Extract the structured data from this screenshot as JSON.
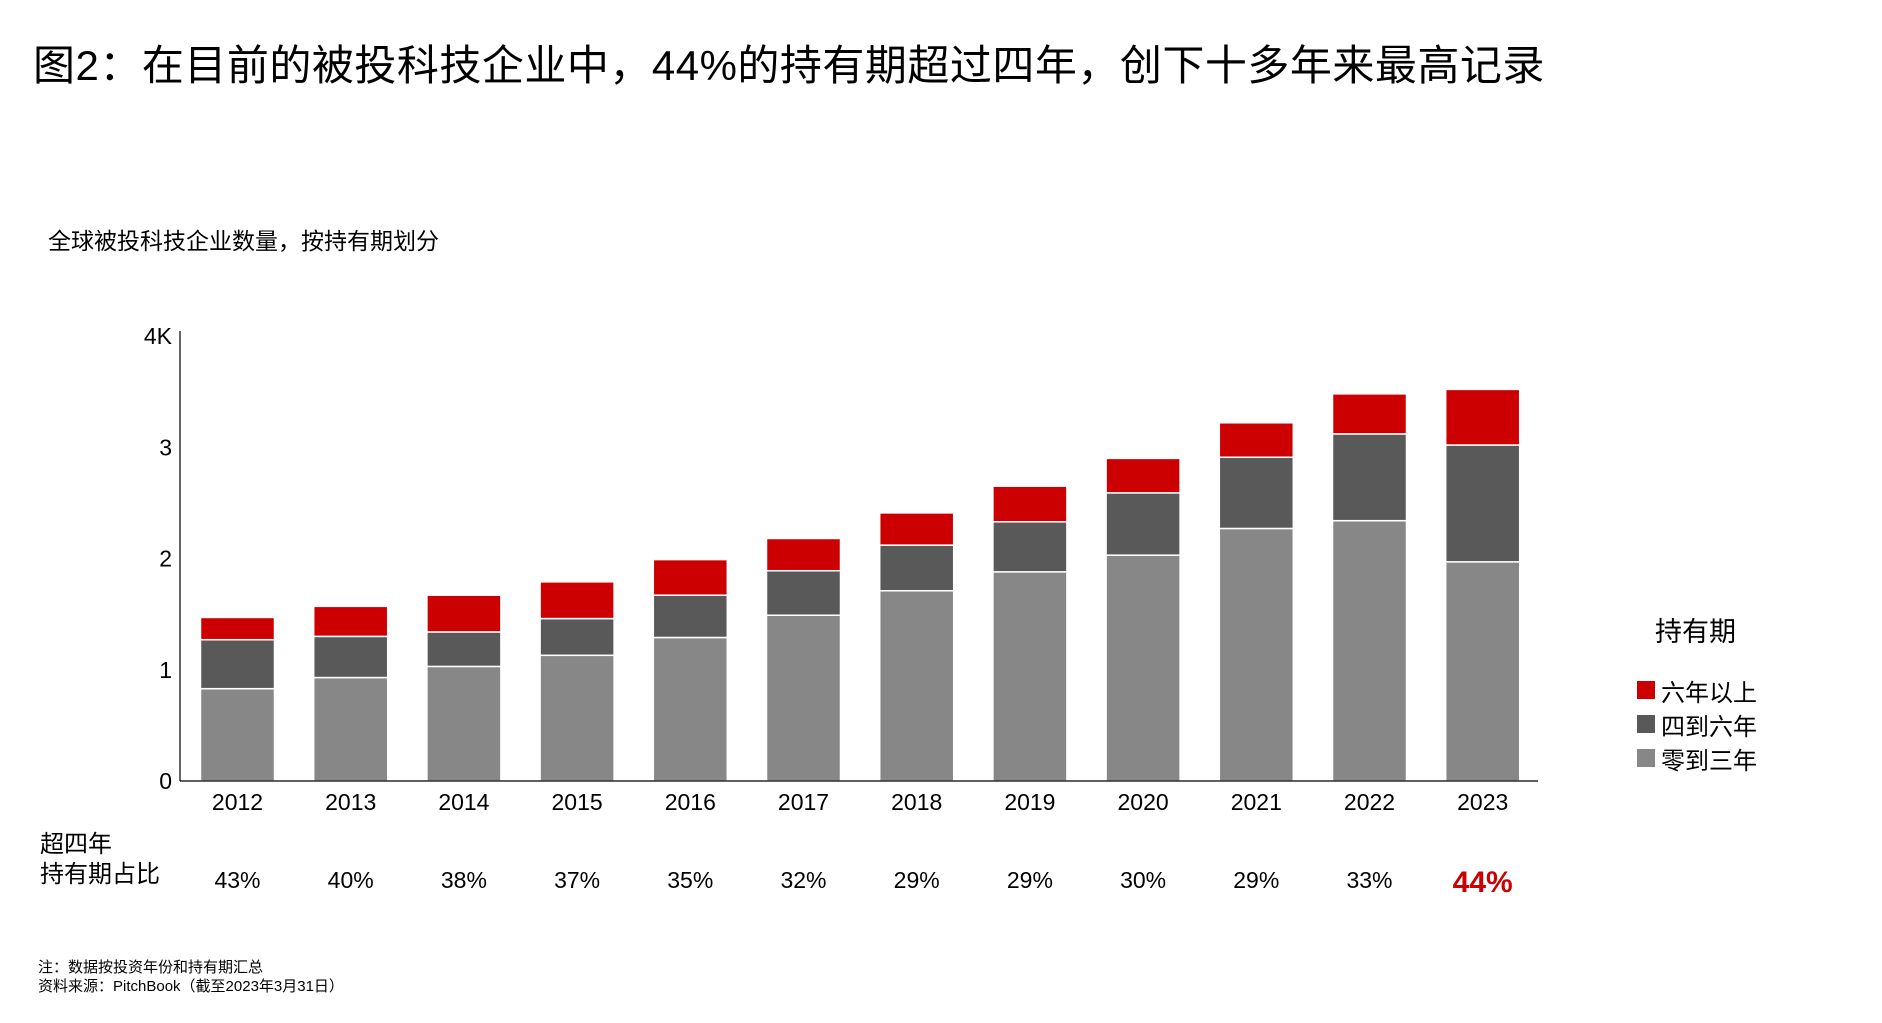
{
  "title": "图2：在目前的被投科技企业中，44%的持有期超过四年，创下十多年来最高记录",
  "subtitle": "全球被投科技企业数量，按持有期划分",
  "chart_data": {
    "type": "bar",
    "stacked": true,
    "categories": [
      "2012",
      "2013",
      "2014",
      "2015",
      "2016",
      "2017",
      "2018",
      "2019",
      "2020",
      "2021",
      "2022",
      "2023"
    ],
    "series": [
      {
        "name": "零到三年",
        "color": "#878787",
        "values": [
          0.83,
          0.93,
          1.03,
          1.13,
          1.29,
          1.49,
          1.71,
          1.88,
          2.03,
          2.27,
          2.34,
          1.97
        ]
      },
      {
        "name": "四到六年",
        "color": "#595959",
        "values": [
          0.44,
          0.37,
          0.31,
          0.33,
          0.38,
          0.4,
          0.41,
          0.45,
          0.56,
          0.64,
          0.78,
          1.05
        ]
      },
      {
        "name": "六年以上",
        "color": "#cc0000",
        "values": [
          0.2,
          0.27,
          0.33,
          0.33,
          0.32,
          0.29,
          0.29,
          0.32,
          0.31,
          0.31,
          0.36,
          0.5
        ]
      }
    ],
    "ylim": [
      0,
      4
    ],
    "yticks": [
      "0",
      "1",
      "2",
      "3",
      "4K"
    ],
    "ytick_values": [
      0,
      1,
      2,
      3,
      4
    ],
    "grid": false,
    "legend": {
      "title": "持有期",
      "placement": "right"
    },
    "share_row": {
      "label_line1": "超四年",
      "label_line2": "持有期占比",
      "values": [
        "43%",
        "40%",
        "38%",
        "37%",
        "35%",
        "32%",
        "29%",
        "29%",
        "30%",
        "29%",
        "33%",
        "44%"
      ],
      "highlight_index": 11,
      "highlight_color": "#cc0000"
    }
  },
  "footnotes": {
    "note": "注：数据按投资年份和持有期汇总",
    "source": "资料来源：PitchBook（截至2023年3月31日）"
  }
}
